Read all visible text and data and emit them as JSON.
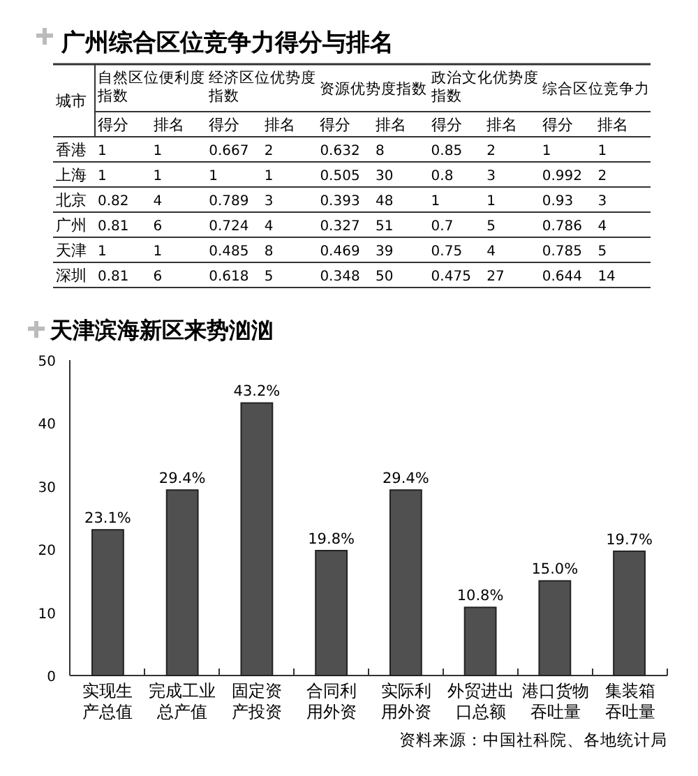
{
  "chart_data": [
    {
      "type": "heatmap",
      "title": "广州综合区位竞争力得分与排名",
      "ylabel": "城市",
      "annotations": [
        "自然区位便利度指数",
        "经济区位优势度指数",
        "资源优势度指数",
        "政治文化优势度指数",
        "综合区位竞争力"
      ],
      "categories": [
        "得分",
        "排名",
        "得分",
        "排名",
        "得分",
        "排名",
        "得分",
        "排名",
        "得分",
        "排名"
      ],
      "y_categories": [
        "香港",
        "上海",
        "北京",
        "广州",
        "天津",
        "深圳"
      ],
      "cells": [
        [
          1,
          1,
          0.667,
          2,
          0.632,
          8,
          0.85,
          2,
          1,
          1
        ],
        [
          1,
          1,
          1,
          1,
          0.505,
          30,
          0.8,
          3,
          0.992,
          2
        ],
        [
          0.82,
          4,
          0.789,
          3,
          0.393,
          48,
          1,
          1,
          0.93,
          3
        ],
        [
          0.81,
          6,
          0.724,
          4,
          0.327,
          51,
          0.7,
          5,
          0.786,
          4
        ],
        [
          1,
          1,
          0.485,
          8,
          0.469,
          39,
          0.75,
          4,
          0.785,
          5
        ],
        [
          0.81,
          6,
          0.618,
          5,
          0.348,
          50,
          0.475,
          27,
          0.644,
          14
        ]
      ],
      "data_labels": true
    },
    {
      "type": "bar",
      "title": "天津滨海新区来势汹汹",
      "categories": [
        "实现生产总值",
        "完成工业总产值",
        "固定资产投资",
        "合同利用外资",
        "实际利用外资",
        "外贸进出口总额",
        "港口货物吞吐量",
        "集装箱吞吐量"
      ],
      "values": [
        23.1,
        29.4,
        43.2,
        19.8,
        29.4,
        10.8,
        15.0,
        19.7
      ],
      "value_labels": [
        "23.1%",
        "29.4%",
        "43.2%",
        "19.8%",
        "29.4%",
        "10.8%",
        "15.0%",
        "19.7%"
      ],
      "color": "#505050",
      "ylim": [
        0,
        50
      ],
      "yticks": [
        0,
        10,
        20,
        30,
        40,
        50
      ],
      "grid": false,
      "annotations": [
        "资料来源：中国社科院、各地统计局"
      ]
    }
  ]
}
